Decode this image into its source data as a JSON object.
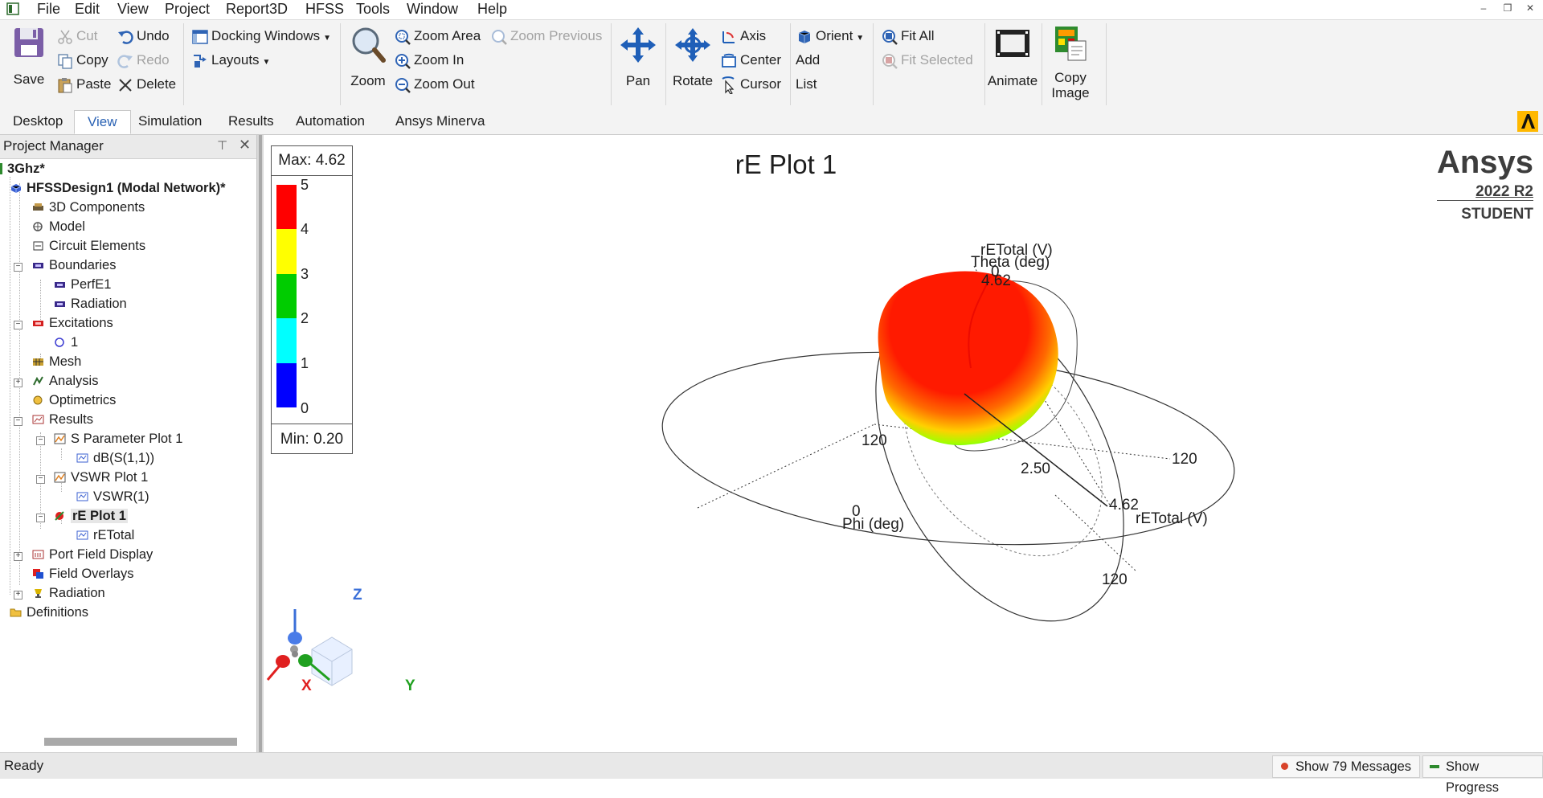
{
  "menu": {
    "items": [
      "File",
      "Edit",
      "View",
      "Project",
      "Report3D",
      "HFSS",
      "Tools",
      "Window",
      "Help"
    ]
  },
  "ribbon": {
    "save": "Save",
    "cut": "Cut",
    "copy": "Copy",
    "paste": "Paste",
    "undo": "Undo",
    "redo": "Redo",
    "delete": "Delete",
    "docking_windows": "Docking Windows",
    "layouts": "Layouts",
    "zoom": "Zoom",
    "zoom_area": "Zoom Area",
    "zoom_in": "Zoom In",
    "zoom_out": "Zoom Out",
    "zoom_previous": "Zoom Previous",
    "pan": "Pan",
    "rotate": "Rotate",
    "axis": "Axis",
    "center": "Center",
    "cursor": "Cursor",
    "orient": "Orient",
    "add": "Add",
    "list": "List",
    "fit_all": "Fit All",
    "fit_selected": "Fit Selected",
    "animate": "Animate",
    "copy_image_1": "Copy",
    "copy_image_2": "Image"
  },
  "tabs": [
    "Desktop",
    "View",
    "Simulation",
    "Results",
    "Automation",
    "Ansys Minerva"
  ],
  "active_tab": "View",
  "project_manager": {
    "title": "Project Manager",
    "tree": {
      "project": "3Ghz*",
      "design": "HFSSDesign1 (Modal Network)*",
      "components": "3D Components",
      "model": "Model",
      "circuit": "Circuit Elements",
      "boundaries": "Boundaries",
      "perfe1": "PerfE1",
      "radiation_bnd": "Radiation",
      "excitations": "Excitations",
      "port1": "1",
      "mesh": "Mesh",
      "analysis": "Analysis",
      "optimetrics": "Optimetrics",
      "results": "Results",
      "splot": "S Parameter Plot 1",
      "splot_trace": "dB(S(1,1))",
      "vswr": "VSWR Plot 1",
      "vswr_trace": "VSWR(1)",
      "replot": "rE Plot 1",
      "replot_trace": "rETotal",
      "portfield": "Port Field Display",
      "overlays": "Field Overlays",
      "radiation": "Radiation",
      "definitions": "Definitions"
    }
  },
  "plot": {
    "title": "rE Plot 1",
    "legend": {
      "max": "Max: 4.62",
      "min": "Min: 0.20",
      "ticks": [
        "5",
        "4",
        "3",
        "2",
        "1",
        "0"
      ],
      "colors": [
        "#ff0000",
        "#ffff00",
        "#00cc00",
        "#00ffff",
        "#0000ff"
      ]
    },
    "brand": "Ansys",
    "version": "2022 R2",
    "edition": "STUDENT",
    "labels": {
      "theta_axis": "rETotal (V)",
      "theta_name": "Theta (deg)",
      "theta_zero": "0",
      "top_value": "4.62",
      "left_120": "120",
      "mid_value": "2.50",
      "right_120": "120",
      "phi_zero": "0",
      "phi_name": "Phi (deg)",
      "right_value": "4.62",
      "right_axis": "rETotal (V)",
      "bottom_120": "120"
    },
    "triad": {
      "z": "Z",
      "x": "X",
      "y": "Y"
    }
  },
  "status": {
    "ready": "Ready",
    "messages": "Show 79 Messages",
    "progress": "Show Progress"
  }
}
